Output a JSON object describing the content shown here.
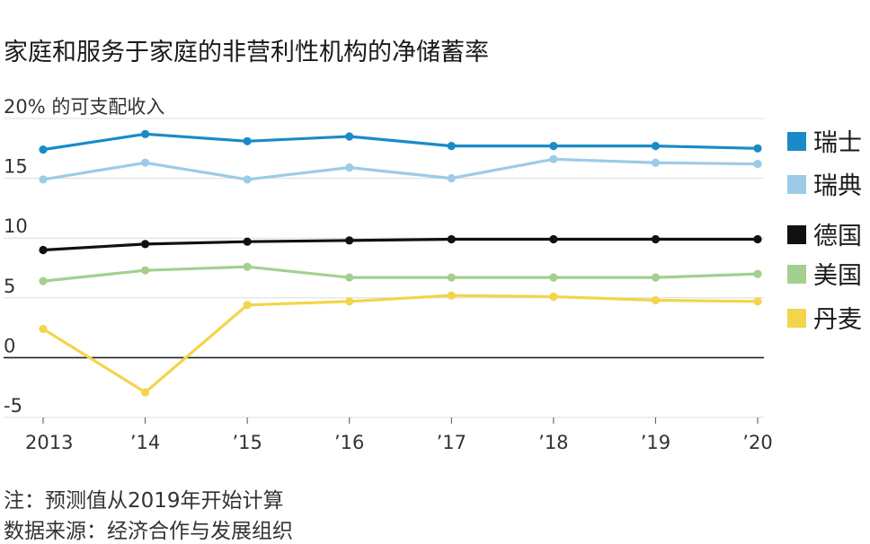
{
  "title": "家庭和服务于家庭的非营利性机构的净储蓄率",
  "notes": {
    "note": "注：预测值从2019年开始计算",
    "source": "数据来源：经济合作与发展组织"
  },
  "chart_data": {
    "type": "line",
    "title": "家庭和服务于家庭的非营利性机构的净储蓄率",
    "ylabel_top": "20% 的可支配收入",
    "ylim": [
      -5,
      20
    ],
    "yticks": [
      {
        "value": 20,
        "label": "20% 的可支配收入"
      },
      {
        "value": 15,
        "label": "15"
      },
      {
        "value": 10,
        "label": "10"
      },
      {
        "value": 5,
        "label": "5"
      },
      {
        "value": 0,
        "label": "0"
      },
      {
        "value": -5,
        "label": "-5"
      }
    ],
    "x": [
      2013,
      2014,
      2015,
      2016,
      2017,
      2018,
      2019,
      2020
    ],
    "xticklabels": [
      "2013",
      "’14",
      "’15",
      "’16",
      "’17",
      "’18",
      "’19",
      "’20"
    ],
    "grid": true,
    "legend_position": "right",
    "series": [
      {
        "name": "瑞士",
        "color": "#1a8bc7",
        "values": [
          17.4,
          18.7,
          18.1,
          18.5,
          17.7,
          17.7,
          17.7,
          17.5
        ]
      },
      {
        "name": "瑞典",
        "color": "#9ccbe8",
        "values": [
          14.9,
          16.3,
          14.9,
          15.9,
          15.0,
          16.6,
          16.3,
          16.2
        ]
      },
      {
        "name": "德国",
        "color": "#111111",
        "values": [
          9.0,
          9.5,
          9.7,
          9.8,
          9.9,
          9.9,
          9.9,
          9.9
        ]
      },
      {
        "name": "美国",
        "color": "#a4d08f",
        "values": [
          6.4,
          7.3,
          7.6,
          6.7,
          6.7,
          6.7,
          6.7,
          7.0
        ]
      },
      {
        "name": "丹麦",
        "color": "#f2d54a",
        "values": [
          2.4,
          -2.9,
          4.4,
          4.7,
          5.2,
          5.1,
          4.8,
          4.7
        ]
      }
    ]
  }
}
